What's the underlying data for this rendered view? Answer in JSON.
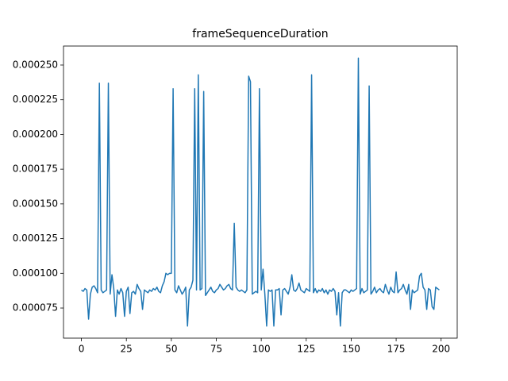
{
  "chart_data": {
    "type": "line",
    "title": "frameSequenceDuration",
    "x": [
      0,
      1,
      2,
      3,
      4,
      5,
      6,
      7,
      8,
      9,
      10,
      11,
      12,
      13,
      14,
      15,
      16,
      17,
      18,
      19,
      20,
      21,
      22,
      23,
      24,
      25,
      26,
      27,
      28,
      29,
      30,
      31,
      32,
      33,
      34,
      35,
      36,
      37,
      38,
      39,
      40,
      41,
      42,
      43,
      44,
      45,
      46,
      47,
      48,
      49,
      50,
      51,
      52,
      53,
      54,
      55,
      56,
      57,
      58,
      59,
      60,
      61,
      62,
      63,
      64,
      65,
      66,
      67,
      68,
      69,
      70,
      71,
      72,
      73,
      74,
      75,
      76,
      77,
      78,
      79,
      80,
      81,
      82,
      83,
      84,
      85,
      86,
      87,
      88,
      89,
      90,
      91,
      92,
      93,
      94,
      95,
      96,
      97,
      98,
      99,
      100,
      101,
      102,
      103,
      104,
      105,
      106,
      107,
      108,
      109,
      110,
      111,
      112,
      113,
      114,
      115,
      116,
      117,
      118,
      119,
      120,
      121,
      122,
      123,
      124,
      125,
      126,
      127,
      128,
      129,
      130,
      131,
      132,
      133,
      134,
      135,
      136,
      137,
      138,
      139,
      140,
      141,
      142,
      143,
      144,
      145,
      146,
      147,
      148,
      149,
      150,
      151,
      152,
      153,
      154,
      155,
      156,
      157,
      158,
      159,
      160,
      161,
      162,
      163,
      164,
      165,
      166,
      167,
      168,
      169,
      170,
      171,
      172,
      173,
      174,
      175,
      176,
      177,
      178,
      179,
      180,
      181,
      182,
      183,
      184,
      185,
      186,
      187,
      188,
      189,
      190,
      191,
      192,
      193,
      194,
      195,
      196,
      197,
      198,
      199
    ],
    "series": [
      {
        "color": "#1f77b4",
        "values": [
          8.8e-05,
          8.7e-05,
          8.9e-05,
          8.8e-05,
          6.7e-05,
          8.5e-05,
          9e-05,
          9.1e-05,
          8.9e-05,
          8.6e-05,
          0.000237,
          8.8e-05,
          8.6e-05,
          8.7e-05,
          8.8e-05,
          0.000237,
          8.5e-05,
          9.9e-05,
          8.9e-05,
          6.9e-05,
          8.8e-05,
          8.5e-05,
          8.9e-05,
          8.6e-05,
          6.9e-05,
          8.7e-05,
          9e-05,
          7.1e-05,
          8.6e-05,
          8.7e-05,
          8.5e-05,
          9.2e-05,
          8.9e-05,
          8.7e-05,
          7.4e-05,
          8.8e-05,
          8.7e-05,
          8.6e-05,
          8.8e-05,
          8.7e-05,
          8.9e-05,
          8.8e-05,
          9e-05,
          8.7e-05,
          8.6e-05,
          9.1e-05,
          9.4e-05,
          0.0001,
          9.9e-05,
          0.0001,
          0.0001,
          0.000233,
          8.8e-05,
          8.6e-05,
          9.1e-05,
          8.8e-05,
          8.5e-05,
          8.7e-05,
          9e-05,
          6.2e-05,
          8.8e-05,
          9e-05,
          9.5e-05,
          0.000233,
          8.8e-05,
          0.000243,
          8.8e-05,
          8.9e-05,
          0.000231,
          8.4e-05,
          8.6e-05,
          8.8e-05,
          9e-05,
          8.7e-05,
          8.6e-05,
          8.8e-05,
          8.9e-05,
          9.2e-05,
          9e-05,
          8.8e-05,
          8.9e-05,
          9.1e-05,
          9.2e-05,
          8.9e-05,
          8.8e-05,
          0.000136,
          9e-05,
          8.8e-05,
          8.7e-05,
          8.8e-05,
          8.7e-05,
          8.6e-05,
          8.8e-05,
          0.000242,
          0.000238,
          8.5e-05,
          8.6e-05,
          8.7e-05,
          8.6e-05,
          0.000233,
          8.8e-05,
          0.000103,
          8.5e-05,
          6.2e-05,
          8.8e-05,
          8.7e-05,
          8.8e-05,
          6.2e-05,
          8.8e-05,
          8.8e-05,
          8.9e-05,
          7e-05,
          8.8e-05,
          8.9e-05,
          8.7e-05,
          8.5e-05,
          9e-05,
          9.9e-05,
          8.8e-05,
          8.7e-05,
          8.9e-05,
          9.3e-05,
          8.8e-05,
          8.7e-05,
          8.6e-05,
          8.9e-05,
          8.8e-05,
          8.7e-05,
          0.000243,
          8.6e-05,
          8.9e-05,
          8.6e-05,
          8.8e-05,
          8.7e-05,
          8.9e-05,
          8.6e-05,
          8.8e-05,
          8.5e-05,
          8.8e-05,
          8.7e-05,
          8.9e-05,
          8.7e-05,
          7e-05,
          8.6e-05,
          6.2e-05,
          8.6e-05,
          8.8e-05,
          8.8e-05,
          8.7e-05,
          8.6e-05,
          8.8e-05,
          8.7e-05,
          8.8e-05,
          8.9e-05,
          0.000255,
          8.5e-05,
          8.9e-05,
          8.6e-05,
          8.7e-05,
          8.8e-05,
          0.000235,
          8.5e-05,
          8.7e-05,
          9e-05,
          8.6e-05,
          8.8e-05,
          8.9e-05,
          8.7e-05,
          8.6e-05,
          9.2e-05,
          8.8e-05,
          8.5e-05,
          9e-05,
          8.7e-05,
          8.6e-05,
          0.000101,
          8.6e-05,
          8.8e-05,
          8.9e-05,
          9.2e-05,
          8.8e-05,
          8.5e-05,
          9.2e-05,
          7.4e-05,
          8.8e-05,
          8.6e-05,
          8.7e-05,
          8.8e-05,
          9.8e-05,
          0.0001,
          9e-05,
          8.8e-05,
          7.4e-05,
          8.9e-05,
          8.8e-05,
          7.6e-05,
          7.4e-05,
          9e-05,
          8.9e-05,
          8.8e-05
        ]
      }
    ],
    "xlim": [
      -9.95,
      208.95
    ],
    "xticks": [
      0,
      25,
      50,
      75,
      100,
      125,
      150,
      175,
      200
    ],
    "ylim": [
      5.33e-05,
      0.0002637
    ],
    "yticks": [
      {
        "value": 7.5e-05,
        "label": "0.000075"
      },
      {
        "value": 0.0001,
        "label": "0.000100"
      },
      {
        "value": 0.000125,
        "label": "0.000125"
      },
      {
        "value": 0.00015,
        "label": "0.000150"
      },
      {
        "value": 0.000175,
        "label": "0.000175"
      },
      {
        "value": 0.0002,
        "label": "0.000200"
      },
      {
        "value": 0.000225,
        "label": "0.000225"
      },
      {
        "value": 0.00025,
        "label": "0.000250"
      }
    ]
  }
}
